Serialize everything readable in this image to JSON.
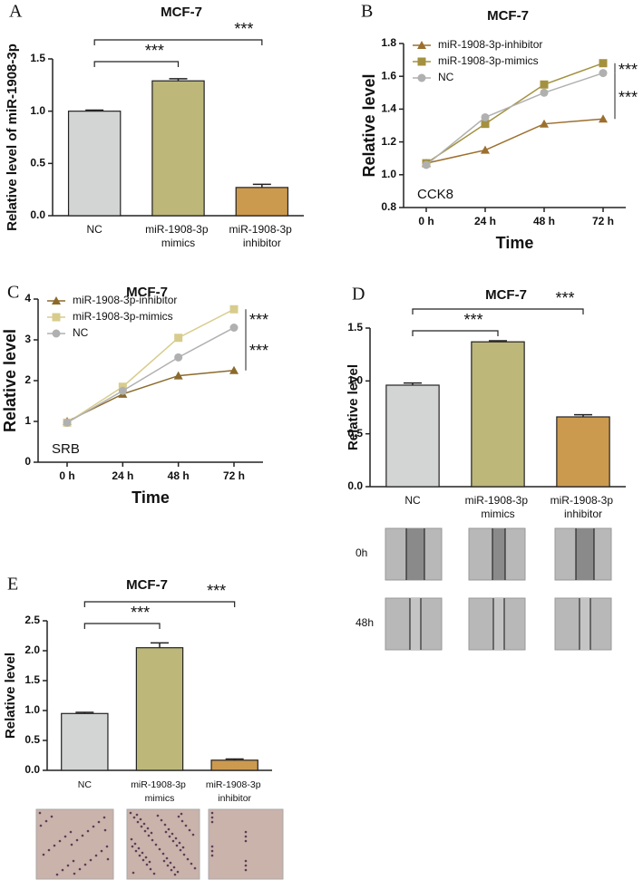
{
  "chart_data": [
    {
      "panel": "A",
      "type": "bar",
      "title": "MCF-7",
      "y_label": "Relative level of miR-1908-3p",
      "categories": [
        "NC",
        "miR-1908-3p mimics",
        "miR-1908-3p inhibitor"
      ],
      "values": [
        1.0,
        1.29,
        0.27
      ],
      "errors": [
        0.01,
        0.02,
        0.03
      ],
      "colors": [
        "#d3d5d5",
        "#bdb77a",
        "#cc9a4f"
      ],
      "ylim": [
        0,
        1.5
      ],
      "yticks": [
        {
          "value": 0,
          "label": "0.0"
        },
        0.5,
        {
          "value": 1,
          "label": "1.0"
        },
        1.5
      ],
      "significance": [
        "***",
        "***"
      ]
    },
    {
      "panel": "B",
      "type": "line",
      "title": "MCF-7",
      "y_label": "Relative level",
      "x_label": "Time",
      "categories": [
        "0 h",
        "24 h",
        "48 h",
        "72 h"
      ],
      "series": [
        {
          "name": "miR-1908-3p-inhibitor",
          "color": "#9c6f2e",
          "marker": "triangle",
          "values": [
            1.07,
            1.15,
            1.31,
            1.34
          ]
        },
        {
          "name": "miR-1908-3p-mimics",
          "color": "#a3913f",
          "marker": "square",
          "values": [
            1.07,
            1.31,
            1.55,
            1.68
          ]
        },
        {
          "name": "NC",
          "color": "#b0b0b0",
          "marker": "circle",
          "values": [
            1.06,
            1.35,
            1.5,
            1.62
          ]
        }
      ],
      "ylim": [
        0.8,
        1.8
      ],
      "yticks": [
        0.8,
        {
          "value": 1,
          "label": "1.0"
        },
        1.2,
        1.4,
        1.6,
        1.8
      ],
      "annotation": "CCK8",
      "significance": [
        "***",
        "***"
      ]
    },
    {
      "panel": "C",
      "type": "line",
      "title": "MCF-7",
      "y_label": "Relative level",
      "x_label": "Time",
      "categories": [
        "0 h",
        "24 h",
        "48 h",
        "72 h"
      ],
      "series": [
        {
          "name": "miR-1908-3p-inhibitor",
          "color": "#8b6a2b",
          "marker": "triangle",
          "values": [
            1.0,
            1.67,
            2.12,
            2.25
          ]
        },
        {
          "name": "miR-1908-3p-mimics",
          "color": "#d8cc8c",
          "marker": "square",
          "values": [
            0.97,
            1.85,
            3.05,
            3.75
          ]
        },
        {
          "name": "NC",
          "color": "#b0b0b0",
          "marker": "circle",
          "values": [
            0.97,
            1.75,
            2.57,
            3.3
          ]
        }
      ],
      "ylim": [
        0,
        4
      ],
      "yticks": [
        0,
        1,
        2,
        3,
        4
      ],
      "annotation": "SRB",
      "significance": [
        "***",
        "***"
      ]
    },
    {
      "panel": "D",
      "type": "bar",
      "title": "MCF-7",
      "y_label": "Relative level",
      "categories": [
        "NC",
        "miR-1908-3p mimics",
        "miR-1908-3p inhibitor"
      ],
      "values": [
        0.96,
        1.37,
        0.66
      ],
      "errors": [
        0.02,
        0.01,
        0.02
      ],
      "colors": [
        "#d3d5d5",
        "#bdb77a",
        "#cc9a4f"
      ],
      "ylim": [
        0,
        1.5
      ],
      "yticks": [
        {
          "value": 0,
          "label": "0.0"
        },
        0.5,
        {
          "value": 1,
          "label": "1.0"
        },
        1.5
      ],
      "significance": [
        "***",
        "***"
      ],
      "image_rows": [
        "0h",
        "48h"
      ]
    },
    {
      "panel": "E",
      "type": "bar",
      "title": "MCF-7",
      "y_label": "Relative level",
      "categories": [
        "NC",
        "miR-1908-3p mimics",
        "miR-1908-3p inhibitor"
      ],
      "values": [
        0.95,
        2.05,
        0.17
      ],
      "errors": [
        0.02,
        0.08,
        0.02
      ],
      "colors": [
        "#d3d5d5",
        "#bdb77a",
        "#cc9a4f"
      ],
      "ylim": [
        0,
        2.5
      ],
      "yticks": [
        {
          "value": 0,
          "label": "0.0"
        },
        0.5,
        {
          "value": 1,
          "label": "1.0"
        },
        1.5,
        {
          "value": 2,
          "label": "2.0"
        },
        2.5
      ],
      "significance": [
        "***",
        "***"
      ]
    }
  ]
}
